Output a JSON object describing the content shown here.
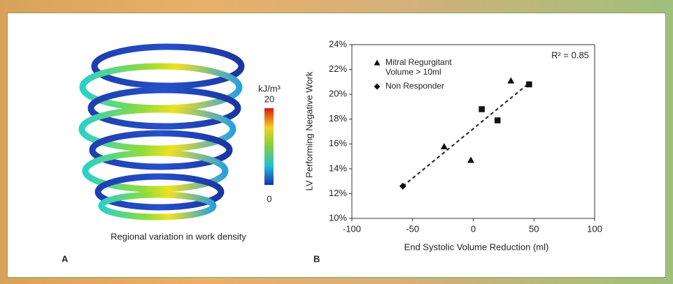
{
  "panel_a": {
    "label": "A",
    "caption": "Regional variation in work density",
    "colorbar": {
      "label": "kJ/m³",
      "ticks": [
        20,
        0
      ]
    }
  },
  "chart_data": {
    "type": "scatter",
    "panel_label": "B",
    "x_label": "End Systolic Volume Reduction (ml)",
    "y_label": "LV Performing Negative Work",
    "annotation": "R² = 0.85",
    "xlim": [
      -100,
      100
    ],
    "xticks": [
      -100,
      -50,
      0,
      50,
      100
    ],
    "ylim": [
      10,
      24
    ],
    "yticks": [
      {
        "value": 10,
        "label": "10%"
      },
      {
        "value": 12,
        "label": "12%"
      },
      {
        "value": 14,
        "label": "14%"
      },
      {
        "value": 16,
        "label": "16%"
      },
      {
        "value": 18,
        "label": "18%"
      },
      {
        "value": 20,
        "label": "20%"
      },
      {
        "value": 22,
        "label": "22%"
      },
      {
        "value": 24,
        "label": "24%"
      }
    ],
    "legend": "upper left",
    "series": [
      {
        "name": "Mitral Regurgitant Volume > 10ml",
        "marker": "triangle",
        "color": "#111111",
        "x": [
          31,
          -24,
          -2
        ],
        "values": [
          21.1,
          15.8,
          14.7
        ]
      },
      {
        "name": "Non Responder",
        "marker": "diamond",
        "color": "#111111",
        "x": [
          -58
        ],
        "values": [
          12.6
        ]
      },
      {
        "marker": "square",
        "color": "#111111",
        "x": [
          46,
          7,
          20
        ],
        "values": [
          20.8,
          18.8,
          17.9
        ]
      }
    ],
    "trendline": {
      "x": [
        -58,
        46
      ],
      "values": [
        12.6,
        20.9
      ]
    }
  }
}
